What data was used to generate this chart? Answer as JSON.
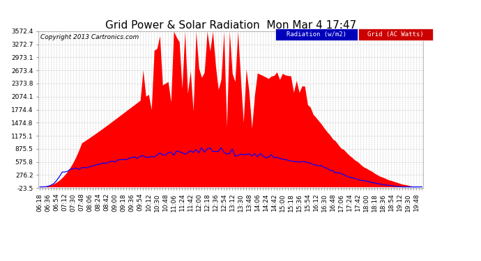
{
  "title": "Grid Power & Solar Radiation  Mon Mar 4 17:47",
  "copyright": "Copyright 2013 Cartronics.com",
  "legend_label_radiation": "Radiation (w/m2)",
  "legend_label_grid": "Grid (AC Watts)",
  "legend_color_radiation": "#0000ff",
  "legend_color_grid": "#ff0000",
  "legend_bg_radiation": "#0000cc",
  "legend_bg_grid": "#cc0000",
  "ymin": -23.5,
  "ymax": 3572.4,
  "yticks": [
    -23.5,
    276.2,
    575.8,
    875.5,
    1175.1,
    1474.8,
    1774.4,
    2074.1,
    2373.8,
    2673.4,
    2973.1,
    3272.7,
    3572.4
  ],
  "background_color": "#ffffff",
  "plot_bg_color": "#ffffff",
  "grid_color": "#bbbbbb",
  "fill_color": "#ff0000",
  "line_color": "#0000ff",
  "title_fontsize": 11,
  "tick_fontsize": 6.5,
  "x_start_hour": 6,
  "x_start_min": 18,
  "x_interval_min": 6,
  "n_points": 138
}
